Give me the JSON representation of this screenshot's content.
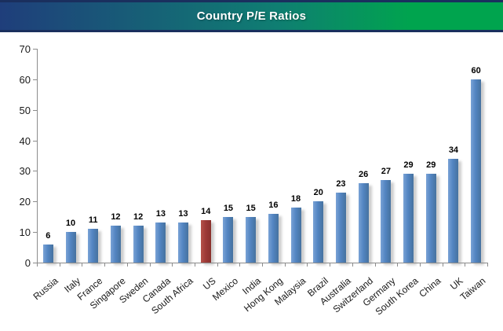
{
  "header": {
    "title": "Country P/E Ratios",
    "text_color": "#FFFFFF",
    "gradient_left": "#1F3E7B",
    "gradient_mid": "#0F7E72",
    "gradient_right": "#00A44E",
    "edge_color": "#1A2F5E"
  },
  "chart_data": {
    "type": "bar",
    "title": "Country P/E Ratios",
    "categories": [
      "Russia",
      "Italy",
      "France",
      "Singapore",
      "Sweden",
      "Canada",
      "South Africa",
      "US",
      "Mexico",
      "India",
      "Hong Kong",
      "Malaysia",
      "Brazil",
      "Australia",
      "Switzerland",
      "Germany",
      "South Korea",
      "China",
      "UK",
      "Taiwan"
    ],
    "values": [
      6,
      10,
      11,
      12,
      12,
      13,
      13,
      14,
      15,
      15,
      16,
      18,
      20,
      23,
      26,
      27,
      29,
      29,
      34,
      60
    ],
    "data_labels": [
      "6",
      "10",
      "11",
      "12",
      "12",
      "13",
      "13",
      "14",
      "15",
      "15",
      "16",
      "18",
      "20",
      "23",
      "26",
      "27",
      "29",
      "29",
      "34",
      "60"
    ],
    "xlabel": "",
    "ylabel": "",
    "ylim": [
      0,
      70
    ],
    "yticks": [
      0,
      10,
      20,
      30,
      40,
      50,
      60,
      70
    ],
    "grid": false,
    "legend": false,
    "show_data_labels": true,
    "bar_color": "#5385C2",
    "bar_color_light": "#7AA3D6",
    "bar_color_dark": "#46729F",
    "highlight_index": 7,
    "highlight_color": "#9E3A38",
    "highlight_color_light": "#B5524A",
    "highlight_color_dark": "#88302C",
    "axis_color": "#8C8C8C",
    "label_color": "#1A1A1A"
  }
}
